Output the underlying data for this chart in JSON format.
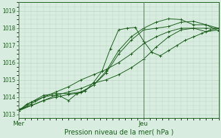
{
  "title": "",
  "xlabel": "Pression niveau de la mer( hPa )",
  "bg_color": "#d8ede0",
  "grid_color": "#b8d4c0",
  "line_color": "#1a5c1a",
  "axis_color": "#1a5c1a",
  "label_color": "#1a5c1a",
  "ylim": [
    1012.8,
    1019.5
  ],
  "yticks": [
    1013,
    1014,
    1015,
    1016,
    1017,
    1018,
    1019
  ],
  "xmin": 0,
  "xmax": 96,
  "mer_x": 0,
  "jeu_x": 60,
  "vline_color": "#557755",
  "series": [
    [
      0,
      1013.2,
      6,
      1013.6,
      12,
      1014.0,
      18,
      1014.3,
      24,
      1014.6,
      30,
      1015.0,
      36,
      1015.3,
      42,
      1015.6,
      48,
      1016.0,
      54,
      1016.5,
      60,
      1017.1,
      66,
      1017.5,
      72,
      1017.8,
      78,
      1018.0,
      84,
      1018.0,
      90,
      1018.0,
      96,
      1018.0
    ],
    [
      0,
      1013.2,
      6,
      1013.5,
      12,
      1013.8,
      18,
      1014.1,
      24,
      1014.3,
      30,
      1014.5,
      36,
      1014.8,
      42,
      1015.0,
      48,
      1015.3,
      54,
      1015.7,
      60,
      1016.2,
      66,
      1016.9,
      72,
      1017.5,
      78,
      1017.9,
      84,
      1018.0,
      90,
      1017.8,
      96,
      1017.9
    ],
    [
      0,
      1013.2,
      6,
      1013.7,
      12,
      1014.1,
      18,
      1014.2,
      24,
      1014.2,
      30,
      1014.3,
      36,
      1014.7,
      42,
      1015.4,
      48,
      1016.5,
      54,
      1017.3,
      60,
      1017.9,
      66,
      1018.0,
      72,
      1018.1,
      78,
      1018.35,
      84,
      1018.4,
      90,
      1018.2,
      96,
      1017.85
    ],
    [
      0,
      1013.3,
      6,
      1013.5,
      12,
      1013.8,
      18,
      1014.0,
      24,
      1014.15,
      30,
      1014.25,
      36,
      1014.7,
      42,
      1015.5,
      48,
      1016.7,
      54,
      1017.5,
      60,
      1018.0,
      66,
      1018.35,
      72,
      1018.55,
      78,
      1018.5,
      84,
      1018.2,
      90,
      1018.2,
      96,
      1018.0
    ],
    [
      0,
      1013.2,
      4,
      1013.6,
      8,
      1013.8,
      12,
      1014.0,
      16,
      1014.1,
      20,
      1014.05,
      24,
      1013.8,
      28,
      1014.2,
      32,
      1014.35,
      36,
      1014.85,
      40,
      1015.5,
      44,
      1016.8,
      48,
      1017.9,
      52,
      1018.0,
      56,
      1018.05,
      60,
      1017.25,
      64,
      1016.6,
      68,
      1016.4,
      72,
      1016.7,
      76,
      1017.0,
      80,
      1017.3,
      84,
      1017.5,
      88,
      1017.7,
      92,
      1017.9,
      96,
      1018.0
    ]
  ],
  "ytick_fontsize": 5.5,
  "xtick_fontsize": 6.5,
  "xlabel_fontsize": 7.0
}
